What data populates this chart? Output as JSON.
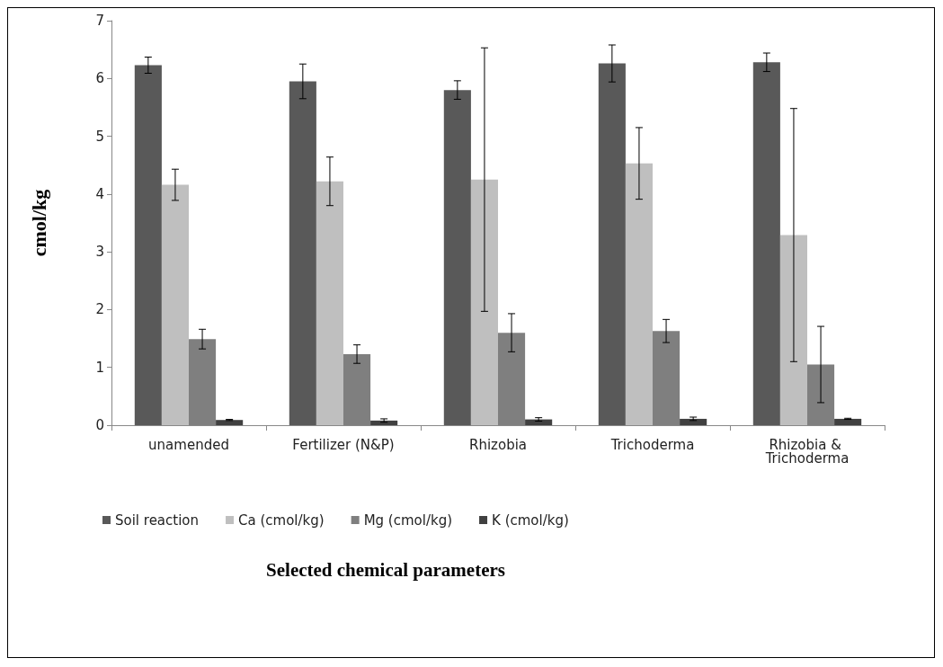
{
  "chart_data": {
    "type": "bar",
    "xlabel": "Selected chemical parameters",
    "ylabel": "cmol/kg",
    "categories": [
      "unamended",
      "Fertilizer (N&P)",
      "Rhizobia",
      "Trichoderma",
      "Rhizobia & Trichoderma"
    ],
    "series": [
      {
        "name": "Soil reaction",
        "color": "#595959",
        "values": [
          6.23,
          5.95,
          5.8,
          6.26,
          6.28
        ],
        "errors": [
          0.14,
          0.3,
          0.16,
          0.32,
          0.16
        ]
      },
      {
        "name": "Ca (cmol/kg)",
        "color": "#bfbfbf",
        "values": [
          4.16,
          4.22,
          4.25,
          4.53,
          3.29
        ],
        "errors": [
          0.27,
          0.42,
          2.28,
          0.62,
          2.19
        ]
      },
      {
        "name": "Mg (cmol/kg)",
        "color": "#7f7f7f",
        "values": [
          1.49,
          1.23,
          1.6,
          1.63,
          1.05
        ],
        "errors": [
          0.17,
          0.16,
          0.33,
          0.2,
          0.66
        ]
      },
      {
        "name": "K (cmol/kg)",
        "color": "#404040",
        "values": [
          0.09,
          0.08,
          0.1,
          0.11,
          0.11
        ],
        "errors": [
          0.01,
          0.03,
          0.03,
          0.03,
          0.01
        ]
      }
    ],
    "ylim": [
      0,
      7
    ],
    "yticks": [
      0,
      1,
      2,
      3,
      4,
      5,
      6,
      7
    ],
    "grid": false,
    "legend": "bottom"
  }
}
